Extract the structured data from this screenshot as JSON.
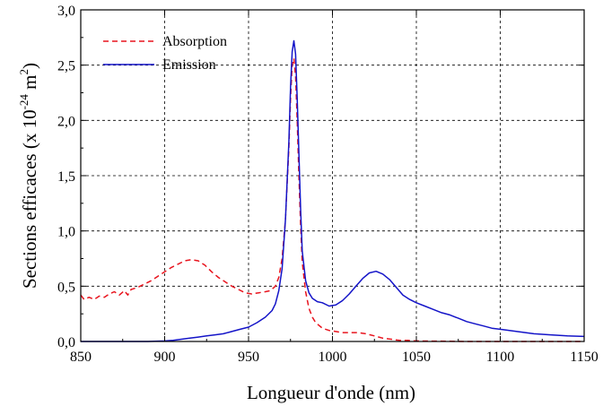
{
  "chart_data": {
    "type": "line",
    "xlabel": "Longueur d'onde (nm)",
    "ylabel": {
      "prefix": "Sections efficaces (x 10",
      "exponent": "-24",
      "unit": " m",
      "unit_exponent": "2",
      "suffix": ")"
    },
    "xlim": [
      850,
      1150
    ],
    "ylim": [
      0,
      3.0
    ],
    "x_ticks": [
      850,
      900,
      950,
      1000,
      1050,
      1100,
      1150
    ],
    "x_tick_labels": [
      "850",
      "900",
      "950",
      "1000",
      "1050",
      "1100",
      "1150"
    ],
    "y_ticks": [
      0,
      0.5,
      1.0,
      1.5,
      2.0,
      2.5,
      3.0
    ],
    "y_tick_labels": [
      "0,0",
      "0,5",
      "1,0",
      "1,5",
      "2,0",
      "2,5",
      "3,0"
    ],
    "grid": true,
    "legend_position": "top-left",
    "series": [
      {
        "name": "Absorption",
        "color": "#e8141e",
        "style": "dashed",
        "points": [
          [
            850,
            0.42
          ],
          [
            852,
            0.38
          ],
          [
            855,
            0.4
          ],
          [
            858,
            0.38
          ],
          [
            861,
            0.41
          ],
          [
            864,
            0.4
          ],
          [
            867,
            0.43
          ],
          [
            870,
            0.45
          ],
          [
            873,
            0.42
          ],
          [
            876,
            0.46
          ],
          [
            878,
            0.42
          ],
          [
            880,
            0.47
          ],
          [
            884,
            0.49
          ],
          [
            888,
            0.52
          ],
          [
            892,
            0.55
          ],
          [
            896,
            0.59
          ],
          [
            900,
            0.63
          ],
          [
            904,
            0.67
          ],
          [
            908,
            0.7
          ],
          [
            912,
            0.73
          ],
          [
            916,
            0.74
          ],
          [
            920,
            0.73
          ],
          [
            924,
            0.69
          ],
          [
            928,
            0.63
          ],
          [
            932,
            0.58
          ],
          [
            936,
            0.54
          ],
          [
            940,
            0.5
          ],
          [
            944,
            0.47
          ],
          [
            948,
            0.44
          ],
          [
            952,
            0.43
          ],
          [
            956,
            0.44
          ],
          [
            960,
            0.45
          ],
          [
            963,
            0.46
          ],
          [
            966,
            0.5
          ],
          [
            968,
            0.58
          ],
          [
            970,
            0.75
          ],
          [
            972,
            1.1
          ],
          [
            974,
            1.75
          ],
          [
            975,
            2.2
          ],
          [
            976,
            2.5
          ],
          [
            977,
            2.56
          ],
          [
            978,
            2.4
          ],
          [
            979,
            2.0
          ],
          [
            980,
            1.5
          ],
          [
            981,
            1.05
          ],
          [
            982,
            0.72
          ],
          [
            984,
            0.45
          ],
          [
            986,
            0.3
          ],
          [
            988,
            0.22
          ],
          [
            990,
            0.17
          ],
          [
            994,
            0.12
          ],
          [
            998,
            0.1
          ],
          [
            1002,
            0.09
          ],
          [
            1006,
            0.08
          ],
          [
            1010,
            0.08
          ],
          [
            1015,
            0.08
          ],
          [
            1020,
            0.07
          ],
          [
            1025,
            0.05
          ],
          [
            1030,
            0.03
          ],
          [
            1035,
            0.02
          ],
          [
            1040,
            0.01
          ],
          [
            1045,
            0.01
          ],
          [
            1050,
            0.005
          ],
          [
            1060,
            0.003
          ],
          [
            1080,
            0.0
          ],
          [
            1100,
            0.0
          ],
          [
            1120,
            0.0
          ],
          [
            1150,
            0.0
          ]
        ]
      },
      {
        "name": "Emission",
        "color": "#1414c8",
        "style": "solid",
        "points": [
          [
            850,
            0.0
          ],
          [
            870,
            0.0
          ],
          [
            890,
            0.0
          ],
          [
            900,
            0.005
          ],
          [
            905,
            0.01
          ],
          [
            910,
            0.02
          ],
          [
            915,
            0.03
          ],
          [
            920,
            0.04
          ],
          [
            925,
            0.05
          ],
          [
            930,
            0.06
          ],
          [
            935,
            0.07
          ],
          [
            940,
            0.09
          ],
          [
            945,
            0.11
          ],
          [
            950,
            0.13
          ],
          [
            955,
            0.17
          ],
          [
            960,
            0.22
          ],
          [
            964,
            0.28
          ],
          [
            966,
            0.34
          ],
          [
            968,
            0.46
          ],
          [
            970,
            0.66
          ],
          [
            972,
            1.1
          ],
          [
            974,
            1.8
          ],
          [
            975,
            2.3
          ],
          [
            976,
            2.62
          ],
          [
            977,
            2.72
          ],
          [
            978,
            2.6
          ],
          [
            979,
            2.2
          ],
          [
            980,
            1.7
          ],
          [
            981,
            1.2
          ],
          [
            982,
            0.82
          ],
          [
            984,
            0.55
          ],
          [
            986,
            0.44
          ],
          [
            988,
            0.39
          ],
          [
            991,
            0.36
          ],
          [
            994,
            0.35
          ],
          [
            998,
            0.32
          ],
          [
            1002,
            0.33
          ],
          [
            1006,
            0.37
          ],
          [
            1010,
            0.43
          ],
          [
            1014,
            0.5
          ],
          [
            1018,
            0.57
          ],
          [
            1022,
            0.62
          ],
          [
            1026,
            0.635
          ],
          [
            1030,
            0.61
          ],
          [
            1034,
            0.56
          ],
          [
            1038,
            0.49
          ],
          [
            1042,
            0.42
          ],
          [
            1046,
            0.38
          ],
          [
            1050,
            0.35
          ],
          [
            1055,
            0.32
          ],
          [
            1060,
            0.29
          ],
          [
            1065,
            0.26
          ],
          [
            1070,
            0.24
          ],
          [
            1075,
            0.21
          ],
          [
            1080,
            0.18
          ],
          [
            1085,
            0.16
          ],
          [
            1090,
            0.14
          ],
          [
            1095,
            0.12
          ],
          [
            1100,
            0.11
          ],
          [
            1110,
            0.09
          ],
          [
            1120,
            0.07
          ],
          [
            1130,
            0.06
          ],
          [
            1140,
            0.05
          ],
          [
            1150,
            0.045
          ]
        ]
      }
    ]
  }
}
